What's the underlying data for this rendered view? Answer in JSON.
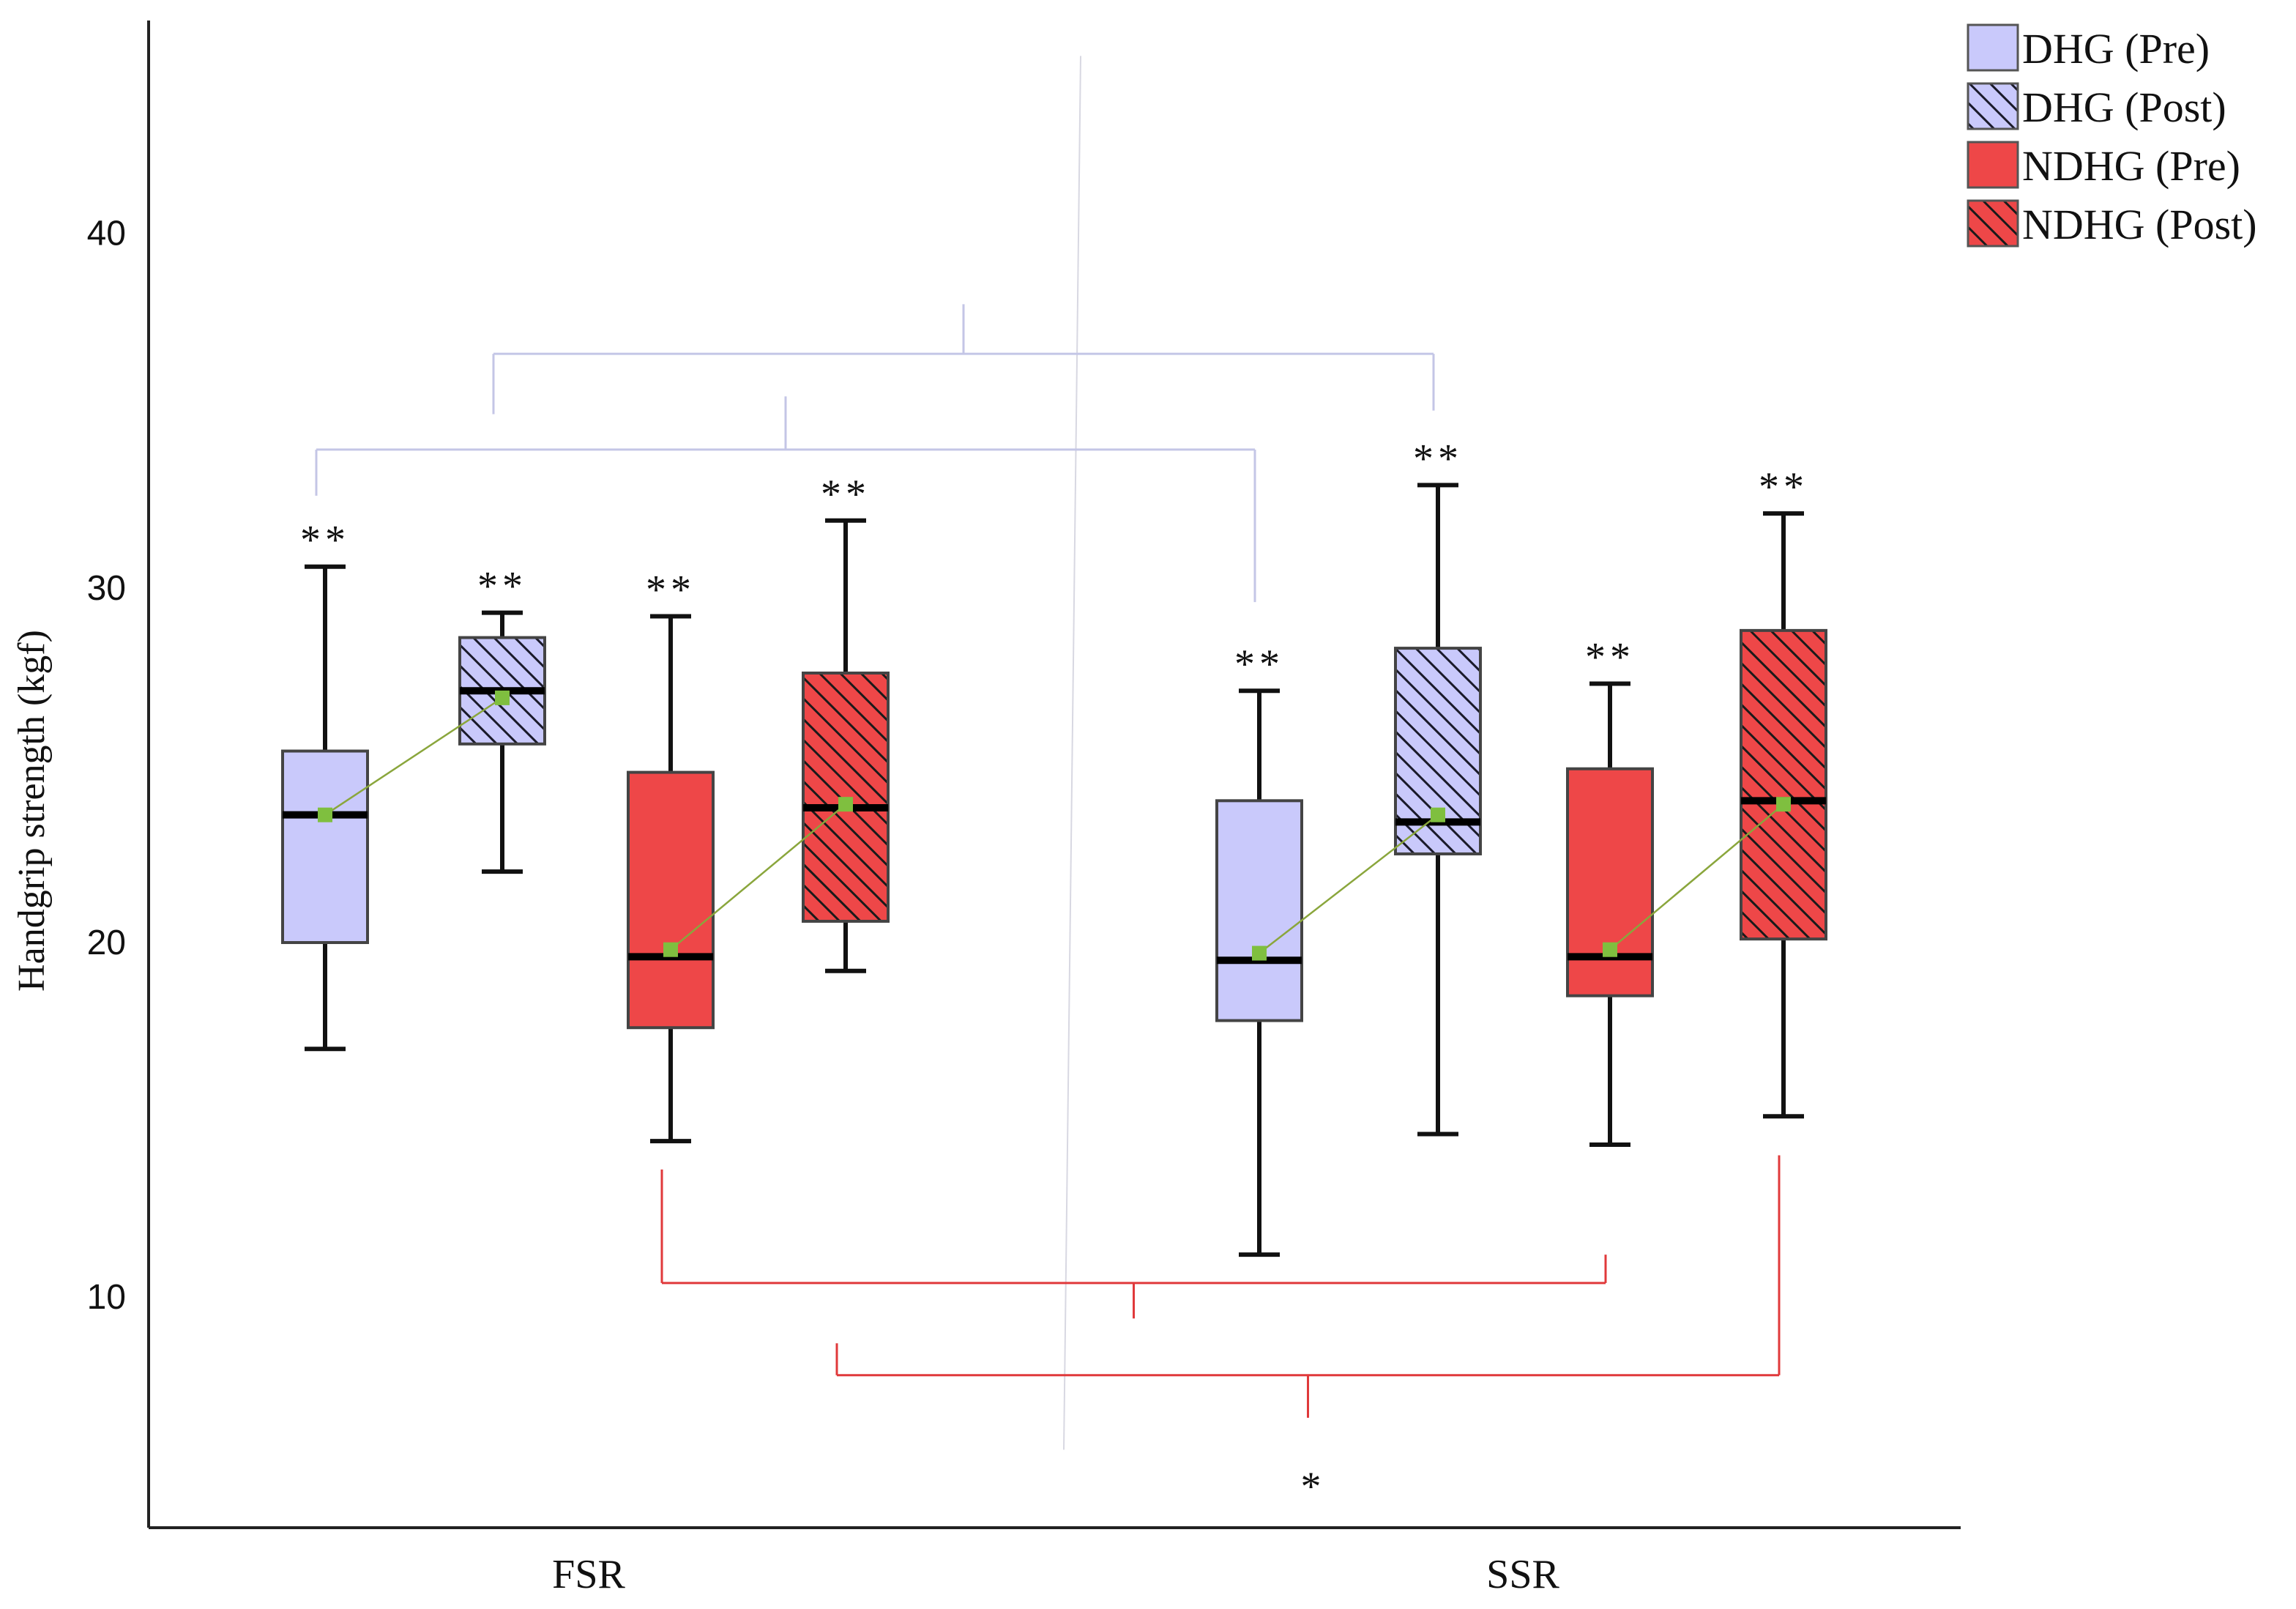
{
  "chart_data": {
    "type": "boxplot",
    "title": "",
    "xlabel": "",
    "ylabel": "Handgrip strength (kgf)",
    "ylim": [
      3.5,
      46
    ],
    "yticks": [
      10,
      20,
      30,
      40
    ],
    "categories": [
      "FSR",
      "SSR"
    ],
    "legend_position": "top-right",
    "colors": {
      "dhg": "#c9c9fb",
      "ndhg": "#ee4748",
      "mean_marker": "#7fbf3f",
      "mean_line": "#8aa63c",
      "axis": "#222222",
      "bracket_blue": "#c4c6e6",
      "bracket_red": "#e0393b"
    },
    "series": [
      {
        "name": "DHG (Pre)",
        "fill": "dhg",
        "hatched": false
      },
      {
        "name": "DHG (Post)",
        "fill": "dhg",
        "hatched": true
      },
      {
        "name": "NDHG (Pre)",
        "fill": "ndhg",
        "hatched": false
      },
      {
        "name": "NDHG (Post)",
        "fill": "ndhg",
        "hatched": true
      }
    ],
    "boxes": [
      {
        "category": "FSR",
        "series": "DHG (Pre)",
        "min": 17.0,
        "q1": 20.0,
        "median": 23.6,
        "q3": 25.4,
        "max": 30.6,
        "mean": 23.6,
        "annotation": "**"
      },
      {
        "category": "FSR",
        "series": "DHG (Post)",
        "min": 22.0,
        "q1": 25.6,
        "median": 27.1,
        "q3": 28.6,
        "max": 29.3,
        "mean": 26.9,
        "annotation": "**"
      },
      {
        "category": "FSR",
        "series": "NDHG (Pre)",
        "min": 14.4,
        "q1": 17.6,
        "median": 19.6,
        "q3": 24.8,
        "max": 29.2,
        "mean": 19.8,
        "annotation": "**"
      },
      {
        "category": "FSR",
        "series": "NDHG (Post)",
        "min": 19.2,
        "q1": 20.6,
        "median": 23.8,
        "q3": 27.6,
        "max": 31.9,
        "mean": 23.9,
        "annotation": "**"
      },
      {
        "category": "SSR",
        "series": "DHG (Pre)",
        "min": 11.2,
        "q1": 17.8,
        "median": 19.5,
        "q3": 24.0,
        "max": 27.1,
        "mean": 19.7,
        "annotation": "**"
      },
      {
        "category": "SSR",
        "series": "DHG (Post)",
        "min": 14.6,
        "q1": 22.5,
        "median": 23.4,
        "q3": 28.3,
        "max": 32.9,
        "mean": 23.6,
        "annotation": "**"
      },
      {
        "category": "SSR",
        "series": "NDHG (Pre)",
        "min": 14.3,
        "q1": 18.5,
        "median": 19.6,
        "q3": 24.9,
        "max": 27.3,
        "mean": 19.8,
        "annotation": "**"
      },
      {
        "category": "SSR",
        "series": "NDHG (Post)",
        "min": 15.1,
        "q1": 20.1,
        "median": 24.0,
        "q3": 28.8,
        "max": 32.1,
        "mean": 23.9,
        "annotation": "**"
      }
    ],
    "brackets": [
      {
        "color": "bracket_blue",
        "from_box": 1,
        "to_box": 5,
        "y": 36.6,
        "left_end": 34.9,
        "right_end": 35.0,
        "stem_top": 38.0,
        "label": ""
      },
      {
        "color": "bracket_blue",
        "from_box": 0,
        "to_box": 4,
        "y": 33.9,
        "left_end": 32.6,
        "right_end": 29.6,
        "stem_top": 35.4,
        "label": ""
      },
      {
        "color": "bracket_red",
        "from_box": 2,
        "to_box": 6,
        "y": 10.4,
        "left_end": 13.6,
        "right_end": 11.2,
        "stem_top": 9.4,
        "label": ""
      },
      {
        "color": "bracket_red",
        "from_box": 3,
        "to_box": 7,
        "y": 7.8,
        "left_end": 8.7,
        "right_end": 14.0,
        "stem_top": 6.6,
        "label": "*"
      }
    ],
    "reference_line": {
      "x_top_frac": 0.44,
      "x_bottom_frac": 0.433,
      "y_top": 45.0,
      "y_bottom": 5.7
    }
  }
}
